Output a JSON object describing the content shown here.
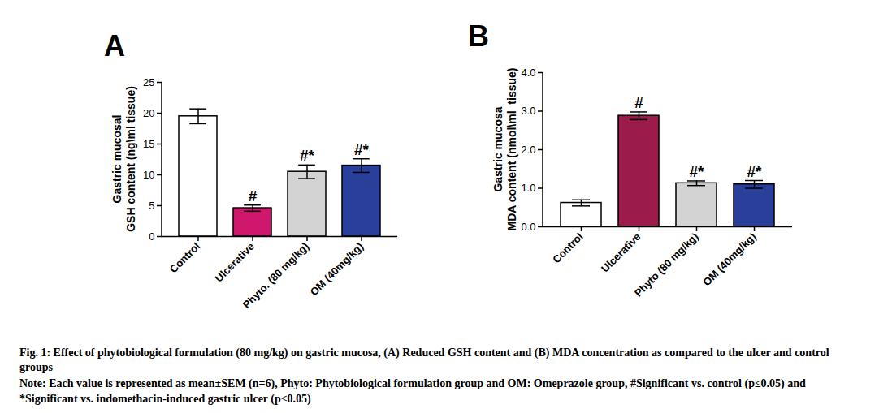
{
  "chart_data": [
    {
      "type": "bar",
      "title": "A",
      "ylabel": [
        "Gastric mucosal",
        "GSH content (ng\\ml tissue)"
      ],
      "categories": [
        "Control",
        "Ulcerative",
        "Phyto. (80 mg/kg)",
        "OM (40mg/kg)"
      ],
      "values": [
        19.5,
        4.6,
        10.5,
        11.5
      ],
      "errors": [
        1.2,
        0.5,
        1.1,
        1.1
      ],
      "significance": [
        null,
        "#",
        "#*",
        "#*"
      ],
      "colors": [
        "#ffffff",
        "#d0176e",
        "#d3d3d3",
        "#2a3f9a"
      ],
      "ylim": [
        0,
        25
      ],
      "yticks": [
        0,
        5,
        10,
        15,
        20,
        25
      ],
      "grid": false
    },
    {
      "type": "bar",
      "title": "B",
      "ylabel": [
        "Gastric mucosa",
        "MDA content (nmol\\ml  tissue)"
      ],
      "categories": [
        "Control",
        "Ulcerative",
        "Phyto (80 mg/kg)",
        "OM (40mg/kg)"
      ],
      "values": [
        0.62,
        2.88,
        1.13,
        1.1
      ],
      "errors": [
        0.08,
        0.1,
        0.06,
        0.1
      ],
      "significance": [
        null,
        "#",
        "#*",
        "#*"
      ],
      "colors": [
        "#ffffff",
        "#9b1b4a",
        "#d3d3d3",
        "#2a3f9a"
      ],
      "ylim": [
        0,
        4
      ],
      "yticks": [
        0,
        1,
        2,
        3,
        4
      ],
      "grid": false
    }
  ],
  "caption": "Fig. 1: Effect of phytobiological formulation (80 mg/kg) on gastric mucosa, (A) Reduced GSH content and (B) MDA concentration as compared to the ulcer and control groups",
  "note": "Note: Each value is represented as mean±SEM (n=6), Phyto: Phytobiological formulation group and OM: Omeprazole group, #Significant vs. control (p≤0.05) and *Significant vs. indomethacin-induced gastric ulcer (p≤0.05)"
}
